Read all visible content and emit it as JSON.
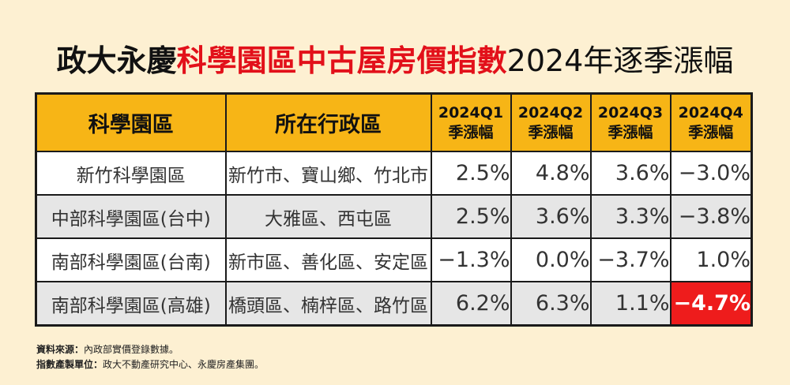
{
  "title": {
    "prefix": "政大永慶",
    "highlight": "科學園區中古屋房價指數",
    "suffix": "2024年逐季漲幅"
  },
  "colors": {
    "header_bg": "#f7b516",
    "title_highlight": "#e2101a",
    "negative_highlight_bg": "#ee1c1c",
    "page_bg": "#fdf0d2",
    "row_alt_bg": "#e6e6e6"
  },
  "table": {
    "headers": {
      "park": "科學園區",
      "district": "所在行政區",
      "quarters": [
        {
          "line1": "2024Q1",
          "line2": "季漲幅"
        },
        {
          "line1": "2024Q2",
          "line2": "季漲幅"
        },
        {
          "line1": "2024Q3",
          "line2": "季漲幅"
        },
        {
          "line1": "2024Q4",
          "line2": "季漲幅"
        }
      ]
    },
    "rows": [
      {
        "park": "新竹科學園區",
        "district": "新竹市、寶山鄉、竹北市",
        "values": [
          "2.5%",
          "4.8%",
          "3.6%",
          "−3.0%"
        ]
      },
      {
        "park": "中部科學園區(台中)",
        "district": "大雅區、西屯區",
        "values": [
          "2.5%",
          "3.6%",
          "3.3%",
          "−3.8%"
        ]
      },
      {
        "park": "南部科學園區(台南)",
        "district": "新市區、善化區、安定區",
        "values": [
          "−1.3%",
          "0.0%",
          "−3.7%",
          "1.0%"
        ]
      },
      {
        "park": "南部科學園區(高雄)",
        "district": "橋頭區、楠梓區、路竹區",
        "values": [
          "6.2%",
          "6.3%",
          "1.1%",
          "−4.7%"
        ]
      }
    ],
    "highlighted_cell": {
      "row": 3,
      "col": 3
    }
  },
  "chart_data": {
    "type": "table",
    "title": "政大永慶科學園區中古屋房價指數2024年逐季漲幅",
    "columns": [
      "科學園區",
      "所在行政區",
      "2024Q1 季漲幅",
      "2024Q2 季漲幅",
      "2024Q3 季漲幅",
      "2024Q4 季漲幅"
    ],
    "categories": [
      "2024Q1",
      "2024Q2",
      "2024Q3",
      "2024Q4"
    ],
    "series": [
      {
        "name": "新竹科學園區",
        "values": [
          2.5,
          4.8,
          3.6,
          -3.0
        ]
      },
      {
        "name": "中部科學園區(台中)",
        "values": [
          2.5,
          3.6,
          3.3,
          -3.8
        ]
      },
      {
        "name": "南部科學園區(台南)",
        "values": [
          -1.3,
          0.0,
          -3.7,
          1.0
        ]
      },
      {
        "name": "南部科學園區(高雄)",
        "values": [
          6.2,
          6.3,
          1.1,
          -4.7
        ]
      }
    ],
    "unit": "%"
  },
  "notes": {
    "source_label": "資料來源：",
    "source_text": "內政部實價登錄數據。",
    "producer_label": "指數產製單位：",
    "producer_text": "政大不動產研究中心、永慶房產集團。"
  }
}
